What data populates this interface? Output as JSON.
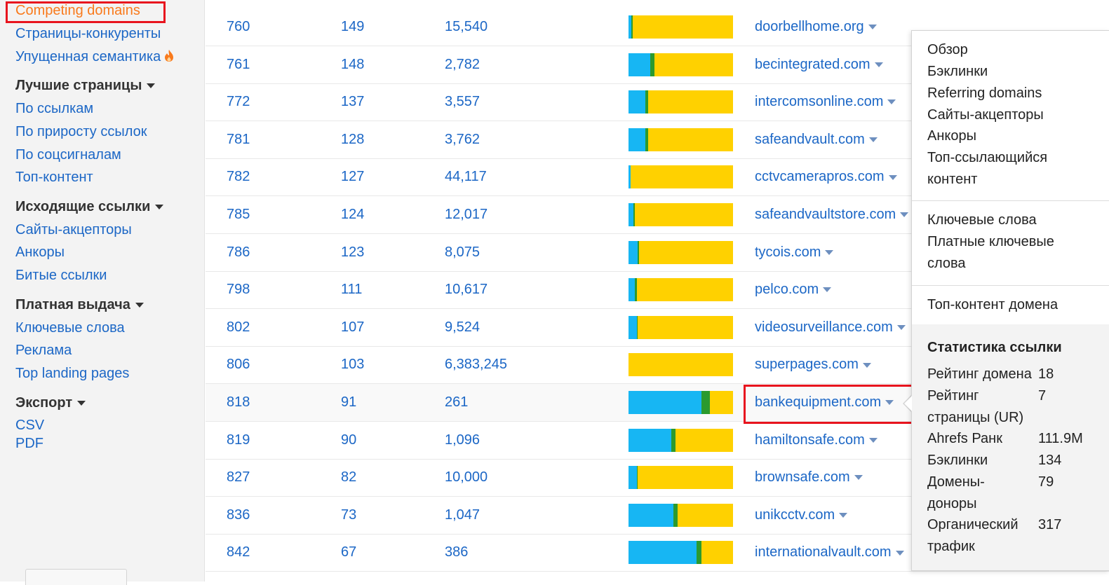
{
  "sidebar": {
    "links": [
      {
        "id": "competing-domains",
        "label": "Competing domains",
        "active": true
      },
      {
        "id": "competing-pages",
        "label": "Страницы-конкуренты"
      },
      {
        "id": "missed-semantics",
        "label": "Упущенная семантика",
        "icon": "fire-icon"
      }
    ],
    "best_pages": {
      "heading": "Лучшие страницы",
      "links": [
        "По ссылкам",
        "По приросту ссылок",
        "По соцсигналам",
        "Топ-контент"
      ]
    },
    "outgoing": {
      "heading": "Исходящие ссылки",
      "links": [
        "Сайты-акцепторы",
        "Анкоры",
        "Битые ссылки"
      ]
    },
    "paid": {
      "heading": "Платная выдача",
      "links": [
        "Ключевые слова",
        "Реклама",
        "Top landing pages"
      ]
    },
    "export": {
      "heading": "Экспорт",
      "links": [
        "CSV",
        "PDF"
      ]
    }
  },
  "table": {
    "rows": [
      {
        "c1": "760",
        "c2": "149",
        "c3": "15,540",
        "domain": "doorbellhome.org",
        "bar": {
          "blue": 0.03,
          "green": 0.01
        }
      },
      {
        "c1": "761",
        "c2": "148",
        "c3": "2,782",
        "domain": "becintegrated.com",
        "bar": {
          "blue": 0.21,
          "green": 0.04
        }
      },
      {
        "c1": "772",
        "c2": "137",
        "c3": "3,557",
        "domain": "intercomsonline.com",
        "bar": {
          "blue": 0.16,
          "green": 0.03
        }
      },
      {
        "c1": "781",
        "c2": "128",
        "c3": "3,762",
        "domain": "safeandvault.com",
        "bar": {
          "blue": 0.16,
          "green": 0.03
        }
      },
      {
        "c1": "782",
        "c2": "127",
        "c3": "44,117",
        "domain": "cctvcamerapros.com",
        "bar": {
          "blue": 0.02,
          "green": 0.0
        }
      },
      {
        "c1": "785",
        "c2": "124",
        "c3": "12,017",
        "domain": "safeandvaultstore.com",
        "bar": {
          "blue": 0.05,
          "green": 0.01
        }
      },
      {
        "c1": "786",
        "c2": "123",
        "c3": "8,075",
        "domain": "tycois.com",
        "bar": {
          "blue": 0.09,
          "green": 0.01
        }
      },
      {
        "c1": "798",
        "c2": "111",
        "c3": "10,617",
        "domain": "pelco.com",
        "bar": {
          "blue": 0.06,
          "green": 0.02
        }
      },
      {
        "c1": "802",
        "c2": "107",
        "c3": "9,524",
        "domain": "videosurveillance.com",
        "bar": {
          "blue": 0.08,
          "green": 0.01
        }
      },
      {
        "c1": "806",
        "c2": "103",
        "c3": "6,383,245",
        "domain": "superpages.com",
        "bar": {
          "blue": 0.0,
          "green": 0.0
        }
      },
      {
        "c1": "818",
        "c2": "91",
        "c3": "261",
        "domain": "bankequipment.com",
        "bar": {
          "blue": 0.7,
          "green": 0.08
        },
        "highlight": true
      },
      {
        "c1": "819",
        "c2": "90",
        "c3": "1,096",
        "domain": "hamiltonsafe.com",
        "bar": {
          "blue": 0.41,
          "green": 0.04
        }
      },
      {
        "c1": "827",
        "c2": "82",
        "c3": "10,000",
        "domain": "brownsafe.com",
        "bar": {
          "blue": 0.08,
          "green": 0.01
        }
      },
      {
        "c1": "836",
        "c2": "73",
        "c3": "1,047",
        "domain": "unikcctv.com",
        "bar": {
          "blue": 0.43,
          "green": 0.04
        }
      },
      {
        "c1": "842",
        "c2": "67",
        "c3": "386",
        "domain": "internationalvault.com",
        "bar": {
          "blue": 0.65,
          "green": 0.05
        }
      }
    ]
  },
  "dropdown": {
    "group1": [
      "Обзор",
      "Бэклинки",
      "Referring domains",
      "Сайты-акцепторы",
      "Анкоры",
      "Топ-ссылающийся",
      "контент"
    ],
    "group2": [
      "Ключевые слова",
      "Платные ключевые",
      "слова"
    ],
    "group3": [
      "Топ-контент домена"
    ],
    "stats": {
      "title": "Статистика ссылки",
      "rows": [
        {
          "label": "Рейтинг домена",
          "value": "18"
        },
        {
          "label": "Рейтинг",
          "value": "7"
        },
        {
          "label": "страницы (UR)",
          "value": ""
        },
        {
          "label": "Ahrefs Ранк",
          "value": "111.9M"
        },
        {
          "label": "Бэклинки",
          "value": "134"
        },
        {
          "label": "Домены-",
          "value": "79"
        },
        {
          "label": "доноры",
          "value": ""
        },
        {
          "label": "Органический",
          "value": "317"
        },
        {
          "label": "трафик",
          "value": ""
        }
      ]
    }
  },
  "colors": {
    "link": "#1c67c6",
    "active": "#f97a1c",
    "bar_blue": "#17b6f3",
    "bar_green": "#2b9a2e",
    "bar_yellow": "#ffd100",
    "highlight_outline": "#e8141e"
  }
}
